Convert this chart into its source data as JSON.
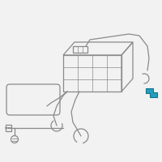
{
  "bg_color": "#f2f2f2",
  "line_color": "#8a8a8a",
  "highlight_color": "#1a9aba",
  "highlight_edge": "#0d6e8a",
  "figsize": [
    2.0,
    2.0
  ],
  "dpi": 100
}
